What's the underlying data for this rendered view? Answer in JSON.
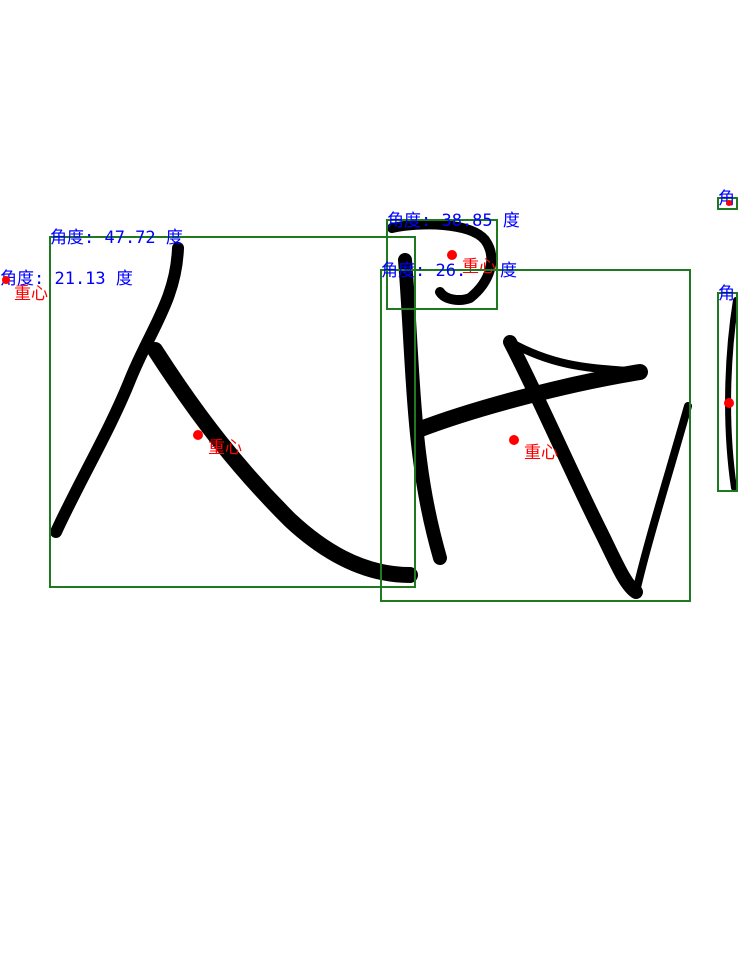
{
  "colors": {
    "box": "#1f7a1f",
    "angle_text": "#0000ff",
    "centroid": "#ff0000",
    "ink": "#000000",
    "background": "#ffffff"
  },
  "regions": [
    {
      "id": "far-left-fragment",
      "angle_label": "角度: 21.13 度",
      "centroid_label": "重心"
    },
    {
      "id": "glyph-ren",
      "angle_label": "角度: 47.72 度",
      "centroid_label": "重心"
    },
    {
      "id": "glyph-hook",
      "angle_label": "角度: 38.85 度",
      "centroid_label": "重心"
    },
    {
      "id": "glyph-dai",
      "angle_label": "角度: 26.",
      "angle_label_tail": "度",
      "centroid_label": "重心"
    },
    {
      "id": "right-small-fragment",
      "angle_label": "角"
    },
    {
      "id": "right-edge-fragment",
      "angle_label": "角"
    }
  ]
}
